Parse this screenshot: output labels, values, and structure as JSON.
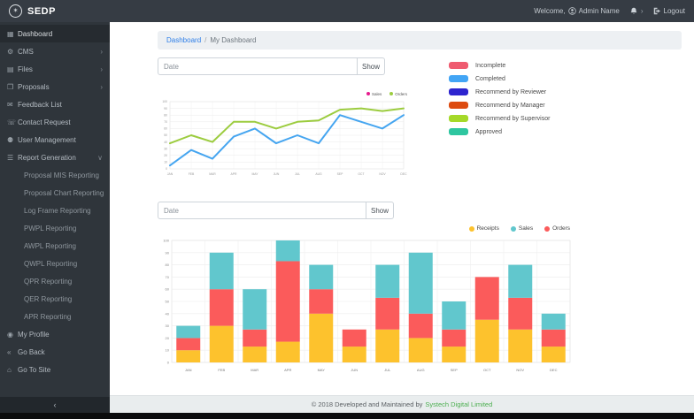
{
  "navbar": {
    "brand": "SEDP",
    "welcome_text": "Welcome,",
    "user_name": "Admin Name",
    "logout_label": "Logout"
  },
  "sidebar": {
    "items": [
      {
        "label": "Dashboard",
        "icon": "dashboard-icon",
        "active": true
      },
      {
        "label": "CMS",
        "icon": "wrench-icon",
        "chevron": "right"
      },
      {
        "label": "Files",
        "icon": "file-icon",
        "chevron": "right"
      },
      {
        "label": "Proposals",
        "icon": "book-icon",
        "chevron": "right"
      },
      {
        "label": "Feedback List",
        "icon": "comments-icon"
      },
      {
        "label": "Contact Request",
        "icon": "comment-icon"
      },
      {
        "label": "User Management",
        "icon": "users-icon"
      },
      {
        "label": "Report Generation",
        "icon": "list-icon",
        "chevron": "down",
        "expanded": true,
        "children": [
          "Proposal MIS Reporting",
          "Proposal Chart Reporting",
          "Log Frame Reporting",
          "PWPL Reporting",
          "AWPL Reporting",
          "QWPL Reporting",
          "QPR Reporting",
          "QER Reporting",
          "APR Reporting"
        ]
      },
      {
        "label": "My Profile",
        "icon": "user-icon"
      },
      {
        "label": "Go Back",
        "icon": "backward-icon"
      },
      {
        "label": "Go To Site",
        "icon": "home-icon"
      }
    ],
    "collapse_label": "‹"
  },
  "breadcrumb": {
    "link": "Dashboard",
    "separator": "/",
    "current": "My Dashboard"
  },
  "filters": {
    "date1_placeholder": "Date",
    "show1_label": "Show",
    "date2_placeholder": "Date",
    "show2_label": "Show"
  },
  "status_legend": [
    {
      "label": "Incomplete",
      "color": "#ef5b70"
    },
    {
      "label": "Completed",
      "color": "#42a5f5"
    },
    {
      "label": "Recommend by Reviewer",
      "color": "#2d24cf"
    },
    {
      "label": "Recommend by Manager",
      "color": "#dd4b10"
    },
    {
      "label": "Recommend by Supervisor",
      "color": "#a5d929"
    },
    {
      "label": "Approved",
      "color": "#2ec6a0"
    }
  ],
  "chart_data": [
    {
      "type": "line",
      "x": [
        "JAN",
        "FEB",
        "MAR",
        "APR",
        "MAY",
        "JUN",
        "JUL",
        "AUG",
        "SEP",
        "OCT",
        "NOV",
        "DEC"
      ],
      "series": [
        {
          "name": "Sales",
          "legend_dot_color": "#e61c8e",
          "line_color": "#45a5f0",
          "values": [
            5,
            28,
            15,
            48,
            60,
            38,
            50,
            38,
            80,
            70,
            60,
            80
          ]
        },
        {
          "name": "Orders",
          "legend_dot_color": "#9ccc3f",
          "line_color": "#9ccc3f",
          "values": [
            38,
            50,
            40,
            70,
            70,
            60,
            70,
            72,
            88,
            90,
            86,
            90
          ]
        }
      ],
      "ylim": [
        0,
        100
      ],
      "ytick_step": 10,
      "grid": true,
      "legend_position": "top-right"
    },
    {
      "type": "bar",
      "stacked": true,
      "categories": [
        "JAN",
        "FEB",
        "MAR",
        "APR",
        "MAY",
        "JUN",
        "JUL",
        "AUG",
        "SEP",
        "OCT",
        "NOV",
        "DEC"
      ],
      "series": [
        {
          "name": "Receipts",
          "color": "#fdc22d",
          "values": [
            10,
            30,
            13,
            17,
            40,
            13,
            27,
            20,
            13,
            35,
            27,
            13
          ]
        },
        {
          "name": "Orders",
          "color": "#fb5b5b",
          "values": [
            10,
            30,
            14,
            66,
            20,
            14,
            26,
            20,
            14,
            35,
            26,
            14
          ]
        },
        {
          "name": "Sales",
          "color": "#61c7cd",
          "values": [
            10,
            30,
            33,
            17,
            20,
            0,
            27,
            50,
            23,
            0,
            27,
            13
          ]
        }
      ],
      "legend": [
        {
          "label": "Receipts",
          "color": "#fdc22d"
        },
        {
          "label": "Sales",
          "color": "#61c7cd"
        },
        {
          "label": "Orders",
          "color": "#fb5b5b"
        }
      ],
      "ylim": [
        0,
        100
      ],
      "ytick_step": 10,
      "grid": true,
      "legend_position": "top-right"
    }
  ],
  "footer": {
    "text": "© 2018 Developed and Maintained by",
    "link": "Systech Digital Limited"
  }
}
